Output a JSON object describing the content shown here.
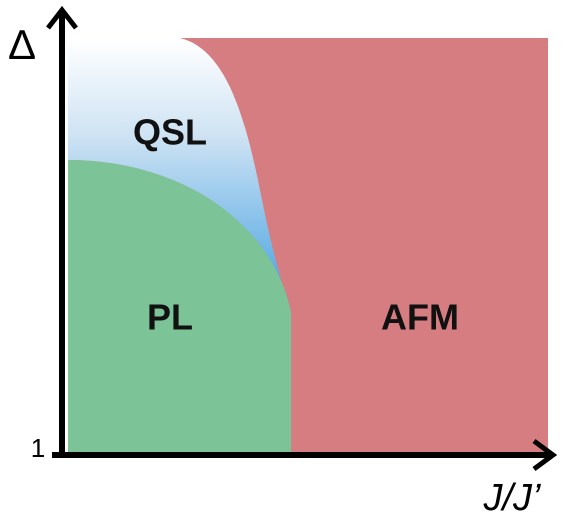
{
  "axes": {
    "y_label": "Δ",
    "y_tick": "1",
    "x_label": "J/J’"
  },
  "regions": [
    {
      "label": "QSL"
    },
    {
      "label": "PL"
    },
    {
      "label": "AFM"
    }
  ]
}
